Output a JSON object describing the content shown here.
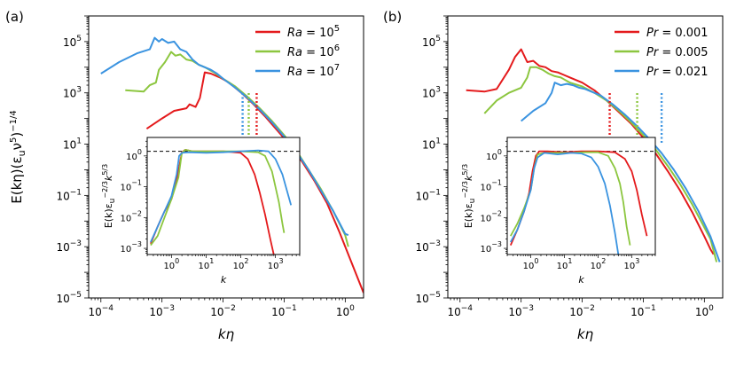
{
  "colors": {
    "red": "#e41a1c",
    "green": "#8cc63f",
    "blue": "#3a93e0"
  },
  "chart_data": [
    {
      "type": "line",
      "panel_label": "(a)",
      "xlabel": "kη",
      "ylabel": "E(kη)(ε_u ν^5)^-1/4",
      "xlim_log10": [
        -4.2,
        0.3
      ],
      "ylim_log10": [
        -5,
        6
      ],
      "xticks": [
        {
          "v": -4,
          "t": "10^-4"
        },
        {
          "v": -3,
          "t": "10^-3"
        },
        {
          "v": -2,
          "t": "10^-2"
        },
        {
          "v": -1,
          "t": "10^-1"
        },
        {
          "v": 0,
          "t": "10^0"
        }
      ],
      "yticks": [
        {
          "v": -5,
          "t": "10^-5"
        },
        {
          "v": -3,
          "t": "10^-3"
        },
        {
          "v": -1,
          "t": "10^-1"
        },
        {
          "v": 1,
          "t": "10^1"
        },
        {
          "v": 3,
          "t": "10^3"
        },
        {
          "v": 5,
          "t": "10^5"
        }
      ],
      "legend_location": "top-right",
      "series": [
        {
          "name": "Ra = 10^5",
          "color": "red",
          "x": [
            -3.25,
            -3.0,
            -2.8,
            -2.6,
            -2.55,
            -2.45,
            -2.38,
            -2.3,
            -2.2,
            -2.05,
            -1.9,
            -1.7,
            -1.5,
            -1.3,
            -1.1,
            -0.9,
            -0.7,
            -0.5,
            -0.3,
            -0.1,
            0.1,
            0.3
          ],
          "y": [
            1.6,
            2.0,
            2.3,
            2.4,
            2.55,
            2.45,
            2.8,
            3.8,
            3.75,
            3.6,
            3.4,
            3.0,
            2.55,
            2.05,
            1.5,
            0.95,
            0.3,
            -0.45,
            -1.3,
            -2.4,
            -3.6,
            -4.8
          ]
        },
        {
          "name": "Ra = 10^6",
          "color": "green",
          "x": [
            -3.6,
            -3.3,
            -3.2,
            -3.1,
            -3.05,
            -2.95,
            -2.85,
            -2.78,
            -2.7,
            -2.6,
            -2.5,
            -2.4,
            -2.3,
            -2.15,
            -2.0,
            -1.8,
            -1.6,
            -1.4,
            -1.2,
            -1.0,
            -0.8,
            -0.6,
            -0.4,
            -0.2,
            0.0,
            0.05
          ],
          "y": [
            3.1,
            3.05,
            3.3,
            3.4,
            3.9,
            4.2,
            4.6,
            4.45,
            4.5,
            4.3,
            4.25,
            4.1,
            4.0,
            3.8,
            3.55,
            3.25,
            2.85,
            2.4,
            1.9,
            1.35,
            0.75,
            0.0,
            -0.75,
            -1.6,
            -2.55,
            -3.0
          ]
        },
        {
          "name": "Ra = 10^7",
          "color": "blue",
          "x": [
            -4.0,
            -3.7,
            -3.4,
            -3.2,
            -3.12,
            -3.05,
            -3.0,
            -2.9,
            -2.8,
            -2.7,
            -2.6,
            -2.5,
            -2.4,
            -2.3,
            -2.2,
            -2.1,
            -2.0,
            -1.8,
            -1.6,
            -1.4,
            -1.2,
            -1.0,
            -0.8,
            -0.6,
            -0.4,
            -0.2,
            0.0,
            0.05
          ],
          "y": [
            3.75,
            4.2,
            4.55,
            4.7,
            5.15,
            5.0,
            5.1,
            4.95,
            5.0,
            4.7,
            4.6,
            4.3,
            4.1,
            4.0,
            3.9,
            3.75,
            3.55,
            3.2,
            2.8,
            2.35,
            1.85,
            1.3,
            0.7,
            0.0,
            -0.8,
            -1.6,
            -2.5,
            -2.55
          ]
        }
      ],
      "vlines": [
        {
          "x": -1.68,
          "color": "blue"
        },
        {
          "x": -1.58,
          "color": "green"
        },
        {
          "x": -1.45,
          "color": "red"
        }
      ],
      "inset": {
        "xlabel": "k",
        "ylabel": "E(k) ε_u^-2/3 k^5/3",
        "xlim_log10": [
          -0.7,
          3.7
        ],
        "ylim_log10": [
          -3.2,
          0.6
        ],
        "hline_log10": 0.15,
        "xticks": [
          {
            "v": 0,
            "t": "10^0"
          },
          {
            "v": 1,
            "t": "10^1"
          },
          {
            "v": 2,
            "t": "10^2"
          },
          {
            "v": 3,
            "t": "10^3"
          }
        ],
        "yticks": [
          {
            "v": -3,
            "t": "10^-3"
          },
          {
            "v": -2,
            "t": "10^-2"
          },
          {
            "v": -1,
            "t": "10^-1"
          },
          {
            "v": 0,
            "t": "10^0"
          }
        ],
        "series": [
          {
            "color": "red",
            "x": [
              -0.6,
              -0.4,
              -0.2,
              0.0,
              0.15,
              0.25,
              0.3,
              0.4,
              0.6,
              1.0,
              1.5,
              2.0,
              2.2,
              2.4,
              2.55,
              2.7,
              2.85,
              2.95
            ],
            "y": [
              -2.85,
              -2.3,
              -1.8,
              -1.4,
              -0.8,
              -0.2,
              0.12,
              0.2,
              0.15,
              0.15,
              0.15,
              0.1,
              -0.1,
              -0.6,
              -1.2,
              -1.9,
              -2.7,
              -3.2
            ]
          },
          {
            "color": "green",
            "x": [
              -0.6,
              -0.4,
              -0.2,
              0.0,
              0.2,
              0.3,
              0.4,
              0.6,
              1.0,
              1.5,
              2.0,
              2.5,
              2.7,
              2.9,
              3.0,
              3.1,
              3.2,
              3.25
            ],
            "y": [
              -2.9,
              -2.6,
              -2.0,
              -1.4,
              -0.7,
              0.1,
              0.2,
              0.15,
              0.15,
              0.15,
              0.15,
              0.12,
              0.0,
              -0.5,
              -1.0,
              -1.5,
              -2.2,
              -2.5
            ]
          },
          {
            "color": "blue",
            "x": [
              -0.6,
              -0.4,
              -0.2,
              0.0,
              0.15,
              0.22,
              0.3,
              0.5,
              1.0,
              1.5,
              2.0,
              2.5,
              2.8,
              3.0,
              3.2,
              3.35,
              3.45
            ],
            "y": [
              -2.8,
              -2.3,
              -1.8,
              -1.3,
              -0.6,
              0.0,
              0.1,
              0.12,
              0.1,
              0.12,
              0.15,
              0.18,
              0.15,
              -0.1,
              -0.6,
              -1.2,
              -1.6
            ]
          }
        ]
      }
    },
    {
      "type": "line",
      "panel_label": "(b)",
      "xlabel": "kη",
      "ylabel": "",
      "xlim_log10": [
        -4.2,
        0.3
      ],
      "ylim_log10": [
        -5,
        6
      ],
      "xticks": [
        {
          "v": -4,
          "t": "10^-4"
        },
        {
          "v": -3,
          "t": "10^-3"
        },
        {
          "v": -2,
          "t": "10^-2"
        },
        {
          "v": -1,
          "t": "10^-1"
        },
        {
          "v": 0,
          "t": "10^0"
        }
      ],
      "yticks": [
        {
          "v": -5,
          "t": "10^-5"
        },
        {
          "v": -3,
          "t": "10^-3"
        },
        {
          "v": -1,
          "t": "10^-1"
        },
        {
          "v": 1,
          "t": "10^1"
        },
        {
          "v": 3,
          "t": "10^3"
        },
        {
          "v": 5,
          "t": "10^5"
        }
      ],
      "legend_location": "top-right",
      "series": [
        {
          "name": "Pr = 0.001",
          "color": "red",
          "x": [
            -3.9,
            -3.6,
            -3.4,
            -3.2,
            -3.1,
            -3.0,
            -2.9,
            -2.8,
            -2.7,
            -2.6,
            -2.5,
            -2.4,
            -2.3,
            -2.2,
            -2.0,
            -1.8,
            -1.6,
            -1.4,
            -1.2,
            -1.0,
            -0.8,
            -0.6,
            -0.4,
            -0.2,
            0.0,
            0.1,
            0.15
          ],
          "y": [
            3.1,
            3.05,
            3.15,
            3.9,
            4.4,
            4.7,
            4.2,
            4.25,
            4.05,
            4.0,
            3.85,
            3.8,
            3.7,
            3.6,
            3.4,
            3.1,
            2.7,
            2.25,
            1.8,
            1.25,
            0.65,
            -0.05,
            -0.8,
            -1.65,
            -2.6,
            -3.1,
            -3.3
          ]
        },
        {
          "name": "Pr = 0.005",
          "color": "green",
          "x": [
            -3.6,
            -3.4,
            -3.2,
            -3.0,
            -2.9,
            -2.85,
            -2.75,
            -2.65,
            -2.55,
            -2.45,
            -2.35,
            -2.2,
            -2.0,
            -1.8,
            -1.6,
            -1.4,
            -1.2,
            -1.0,
            -0.8,
            -0.6,
            -0.4,
            -0.2,
            0.0,
            0.1,
            0.2
          ],
          "y": [
            2.2,
            2.7,
            3.0,
            3.2,
            3.6,
            4.0,
            4.0,
            3.9,
            3.75,
            3.65,
            3.6,
            3.4,
            3.25,
            3.0,
            2.7,
            2.3,
            1.85,
            1.35,
            0.8,
            0.15,
            -0.55,
            -1.35,
            -2.25,
            -2.7,
            -3.6
          ]
        },
        {
          "name": "Pr = 0.021",
          "color": "blue",
          "x": [
            -3.0,
            -2.8,
            -2.6,
            -2.5,
            -2.45,
            -2.35,
            -2.25,
            -2.15,
            -2.05,
            -1.95,
            -1.85,
            -1.7,
            -1.5,
            -1.3,
            -1.1,
            -0.9,
            -0.7,
            -0.5,
            -0.3,
            -0.1,
            0.1,
            0.25
          ],
          "y": [
            1.9,
            2.3,
            2.6,
            3.0,
            3.4,
            3.3,
            3.35,
            3.3,
            3.2,
            3.15,
            3.05,
            2.9,
            2.55,
            2.15,
            1.7,
            1.2,
            0.65,
            0.0,
            -0.75,
            -1.6,
            -2.6,
            -3.6
          ]
        }
      ],
      "vlines": [
        {
          "x": -1.55,
          "color": "red"
        },
        {
          "x": -1.1,
          "color": "green"
        },
        {
          "x": -0.7,
          "color": "blue"
        }
      ],
      "inset": {
        "xlabel": "k",
        "ylabel": "E(k) ε_u^-2/3 k^5/3",
        "xlim_log10": [
          -0.7,
          3.7
        ],
        "ylim_log10": [
          -3.2,
          0.6
        ],
        "hline_log10": 0.15,
        "xticks": [
          {
            "v": 0,
            "t": "10^0"
          },
          {
            "v": 1,
            "t": "10^1"
          },
          {
            "v": 2,
            "t": "10^2"
          },
          {
            "v": 3,
            "t": "10^3"
          }
        ],
        "yticks": [
          {
            "v": -3,
            "t": "10^-3"
          },
          {
            "v": -2,
            "t": "10^-2"
          },
          {
            "v": -1,
            "t": "10^-1"
          },
          {
            "v": 0,
            "t": "10^0"
          }
        ],
        "series": [
          {
            "color": "red",
            "x": [
              -0.6,
              -0.4,
              -0.2,
              -0.05,
              0.05,
              0.15,
              0.25,
              0.5,
              1.0,
              1.5,
              2.0,
              2.5,
              2.8,
              3.0,
              3.15,
              3.3,
              3.45
            ],
            "y": [
              -2.9,
              -2.4,
              -1.8,
              -1.2,
              -0.5,
              0.0,
              0.15,
              0.15,
              0.12,
              0.15,
              0.15,
              0.12,
              -0.1,
              -0.5,
              -1.1,
              -1.9,
              -2.6
            ]
          },
          {
            "color": "green",
            "x": [
              -0.6,
              -0.4,
              -0.2,
              0.0,
              0.1,
              0.2,
              0.4,
              0.8,
              1.2,
              1.6,
              2.0,
              2.3,
              2.5,
              2.65,
              2.75,
              2.85,
              2.95
            ],
            "y": [
              -2.6,
              -2.2,
              -1.7,
              -1.1,
              -0.4,
              0.05,
              0.1,
              0.1,
              0.1,
              0.12,
              0.12,
              0.0,
              -0.4,
              -0.9,
              -1.5,
              -2.3,
              -2.9
            ]
          },
          {
            "color": "blue",
            "x": [
              -0.6,
              -0.4,
              -0.2,
              0.0,
              0.1,
              0.2,
              0.4,
              0.8,
              1.2,
              1.5,
              1.8,
              2.0,
              2.2,
              2.35,
              2.5,
              2.6
            ],
            "y": [
              -2.8,
              -2.4,
              -1.8,
              -1.1,
              -0.4,
              -0.05,
              0.1,
              0.05,
              0.1,
              0.08,
              -0.05,
              -0.35,
              -0.9,
              -1.6,
              -2.5,
              -3.2
            ]
          }
        ]
      }
    }
  ]
}
